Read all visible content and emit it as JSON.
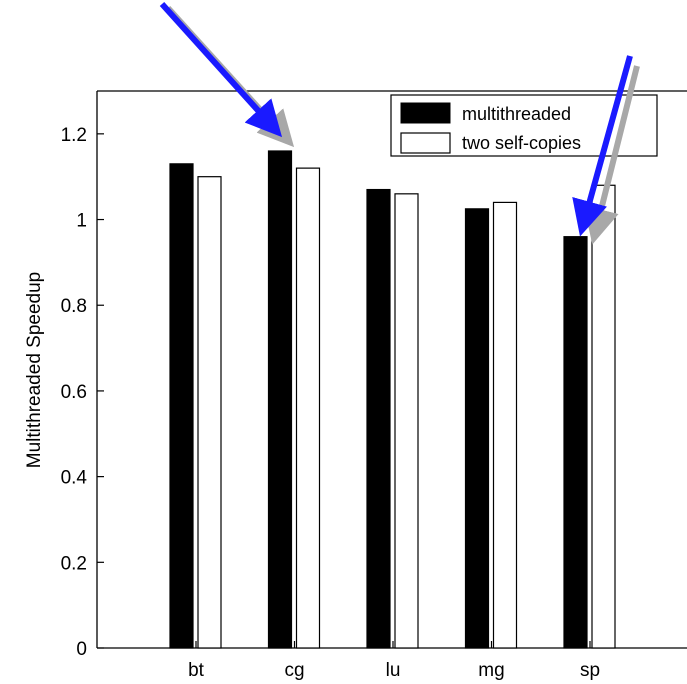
{
  "chart_data": {
    "type": "bar",
    "categories": [
      "bt",
      "cg",
      "lu",
      "mg",
      "sp"
    ],
    "series": [
      {
        "name": "multithreaded",
        "values": [
          1.13,
          1.16,
          1.07,
          1.025,
          0.96
        ],
        "color": "#000000"
      },
      {
        "name": "two self-copies",
        "values": [
          1.1,
          1.12,
          1.06,
          1.04,
          1.08
        ],
        "color": "#ffffff"
      }
    ],
    "title": "",
    "xlabel": "",
    "ylabel": "Multithreaded Speedup",
    "ylim": [
      0,
      1.3
    ],
    "yticks": [
      "0",
      "0.2",
      "0.4",
      "0.6",
      "0.8",
      "1",
      "1.2"
    ],
    "grid": false,
    "legend_position": "top-right",
    "annotations": [
      {
        "type": "arrow",
        "color": "#1a1aff",
        "target_category": "cg",
        "target_series": "multithreaded"
      },
      {
        "type": "arrow",
        "color": "#1a1aff",
        "target_category": "sp",
        "target_series": "multithreaded"
      }
    ]
  }
}
